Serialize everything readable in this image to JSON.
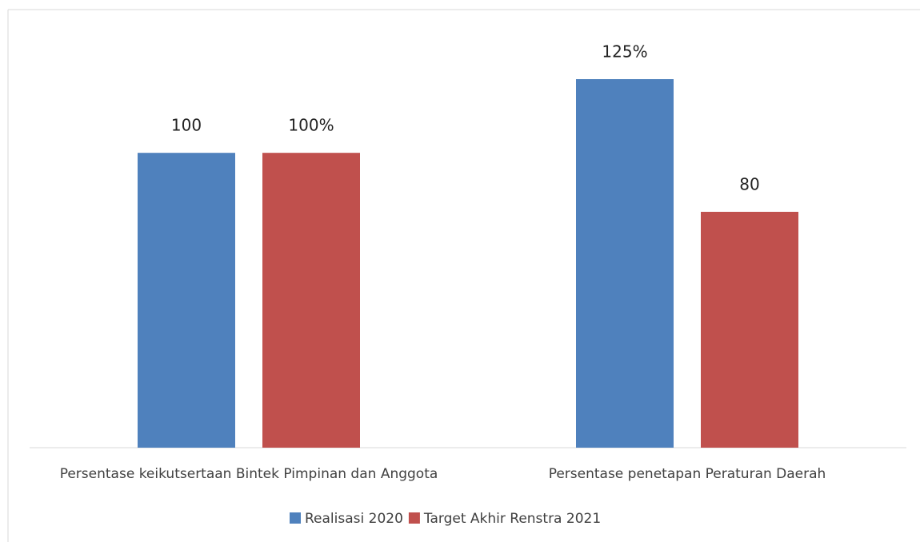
{
  "chart_data": {
    "type": "bar",
    "categories": [
      "Persentase keikutsertaan Bintek Pimpinan dan Anggota",
      "Persentase penetapan Peraturan Daerah"
    ],
    "series": [
      {
        "name": "Realisasi 2020",
        "color": "#4f81bd",
        "values": [
          100,
          125
        ],
        "value_labels": [
          "100",
          "125%"
        ]
      },
      {
        "name": "Target Akhir Renstra 2021",
        "color": "#c0504d",
        "values": [
          100,
          80
        ],
        "value_labels": [
          "100%",
          "80"
        ]
      }
    ],
    "legend": "bottom"
  }
}
